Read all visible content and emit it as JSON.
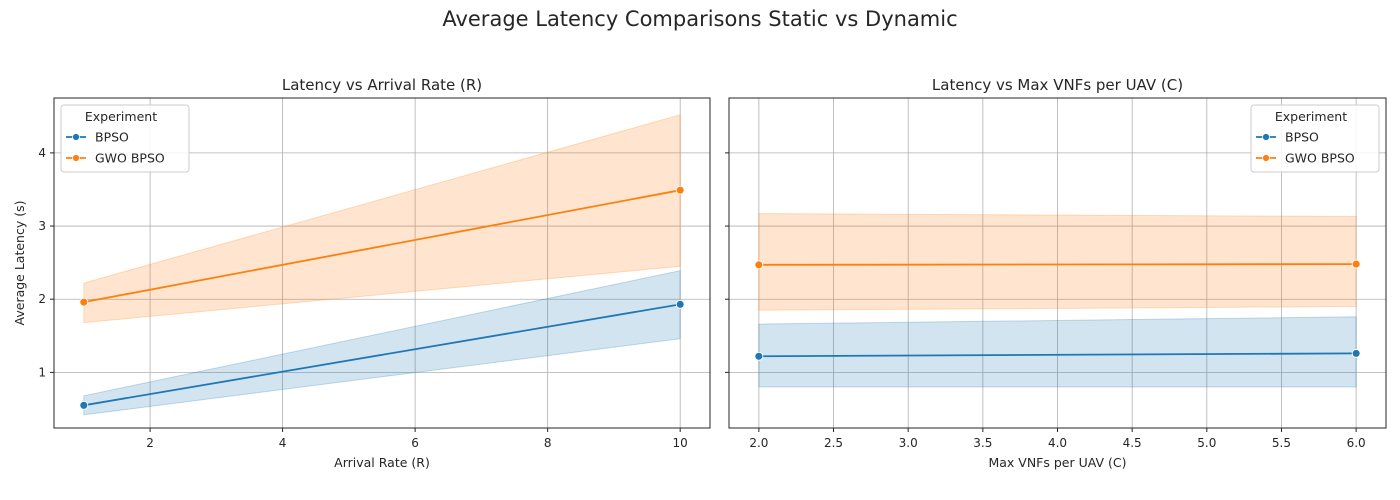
{
  "figure": {
    "suptitle": "Average Latency Comparisons Static vs Dynamic",
    "colors": {
      "BPSO": "#1f77b4",
      "GWO BPSO": "#ff7f0e",
      "grid": "#b0b0b0",
      "axis": "#262626"
    }
  },
  "chart_data": [
    {
      "type": "line",
      "title": "Latency vs Arrival Rate (R)",
      "xlabel": "Arrival Rate (R)",
      "ylabel": "Average Latency (s)",
      "xlim": [
        0.55,
        10.45
      ],
      "ylim": [
        0.24,
        4.75
      ],
      "xticks": [
        2,
        4,
        6,
        8,
        10
      ],
      "xtick_labels": [
        "2",
        "4",
        "6",
        "8",
        "10"
      ],
      "yticks": [
        1,
        2,
        3,
        4
      ],
      "ytick_labels": [
        "1",
        "2",
        "3",
        "4"
      ],
      "grid": true,
      "legend": {
        "title": "Experiment",
        "placement": "upper-left"
      },
      "series": [
        {
          "name": "BPSO",
          "x": [
            1,
            10
          ],
          "y": [
            0.55,
            1.93
          ],
          "ci_low": [
            0.42,
            1.46
          ],
          "ci_high": [
            0.68,
            2.39
          ]
        },
        {
          "name": "GWO BPSO",
          "x": [
            1,
            10
          ],
          "y": [
            1.96,
            3.49
          ],
          "ci_low": [
            1.68,
            2.45
          ],
          "ci_high": [
            2.22,
            4.52
          ]
        }
      ]
    },
    {
      "type": "line",
      "title": "Latency vs Max VNFs per UAV (C)",
      "xlabel": "Max VNFs per UAV (C)",
      "ylabel": "",
      "xlim": [
        1.8,
        6.2
      ],
      "ylim": [
        0.24,
        4.75
      ],
      "xticks": [
        2.0,
        2.5,
        3.0,
        3.5,
        4.0,
        4.5,
        5.0,
        5.5,
        6.0
      ],
      "xtick_labels": [
        "2.0",
        "2.5",
        "3.0",
        "3.5",
        "4.0",
        "4.5",
        "5.0",
        "5.5",
        "6.0"
      ],
      "yticks": [
        1,
        2,
        3,
        4
      ],
      "ytick_labels": [
        "",
        "",
        "",
        ""
      ],
      "grid": true,
      "legend": {
        "title": "Experiment",
        "placement": "upper-right"
      },
      "series": [
        {
          "name": "BPSO",
          "x": [
            2,
            6
          ],
          "y": [
            1.22,
            1.26
          ],
          "ci_low": [
            0.8,
            0.8
          ],
          "ci_high": [
            1.66,
            1.76
          ]
        },
        {
          "name": "GWO BPSO",
          "x": [
            2,
            6
          ],
          "y": [
            2.47,
            2.48
          ],
          "ci_low": [
            1.85,
            1.9
          ],
          "ci_high": [
            3.17,
            3.13
          ]
        }
      ]
    }
  ]
}
